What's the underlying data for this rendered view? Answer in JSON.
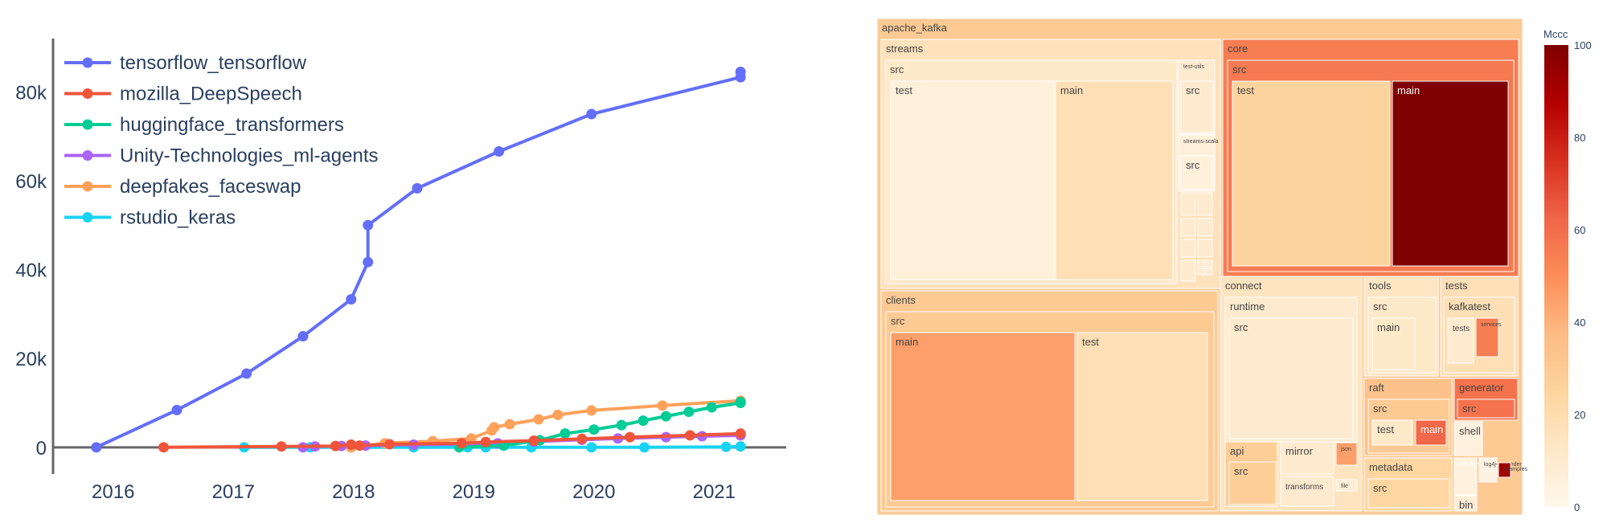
{
  "chart_data": [
    {
      "type": "line",
      "ylim": [
        -6000,
        92000
      ],
      "xlim": [
        2015.5,
        2021.6
      ],
      "yticks": [
        {
          "value": 0,
          "label": "0"
        },
        {
          "value": 20000,
          "label": "20k"
        },
        {
          "value": 40000,
          "label": "40k"
        },
        {
          "value": 60000,
          "label": "60k"
        },
        {
          "value": 80000,
          "label": "80k"
        }
      ],
      "xticks": [
        {
          "value": 2016,
          "label": "2016"
        },
        {
          "value": 2017,
          "label": "2017"
        },
        {
          "value": 2018,
          "label": "2018"
        },
        {
          "value": 2019,
          "label": "2019"
        },
        {
          "value": 2020,
          "label": "2020"
        },
        {
          "value": 2021,
          "label": "2021"
        }
      ],
      "legend_position": "top-left",
      "series": [
        {
          "name": "tensorflow_tensorflow",
          "color": "#636efa",
          "points": [
            [
              2015.86,
              0
            ],
            [
              2016.53,
              8400
            ],
            [
              2017.11,
              16600
            ],
            [
              2017.58,
              25000
            ],
            [
              2017.98,
              33300
            ],
            [
              2018.12,
              41700
            ],
            [
              2018.12,
              50000
            ],
            [
              2018.53,
              58300
            ],
            [
              2019.21,
              66600
            ],
            [
              2019.98,
              75000
            ],
            [
              2021.22,
              83300
            ],
            [
              2021.22,
              84500
            ]
          ]
        },
        {
          "name": "mozilla_DeepSpeech",
          "color": "#ef553b",
          "points": [
            [
              2016.42,
              0
            ],
            [
              2017.4,
              200
            ],
            [
              2017.85,
              300
            ],
            [
              2017.98,
              600
            ],
            [
              2018.05,
              400
            ],
            [
              2018.3,
              700
            ],
            [
              2018.9,
              900
            ],
            [
              2019.1,
              1200
            ],
            [
              2019.5,
              1500
            ],
            [
              2019.9,
              1900
            ],
            [
              2020.3,
              2300
            ],
            [
              2020.8,
              2700
            ],
            [
              2021.22,
              3100
            ]
          ]
        },
        {
          "name": "huggingface_transformers",
          "color": "#00cc96",
          "points": [
            [
              2018.88,
              0
            ],
            [
              2019.25,
              400
            ],
            [
              2019.55,
              1600
            ],
            [
              2019.76,
              3100
            ],
            [
              2020.0,
              4000
            ],
            [
              2020.23,
              5000
            ],
            [
              2020.41,
              6000
            ],
            [
              2020.6,
              7000
            ],
            [
              2020.79,
              8000
            ],
            [
              2020.98,
              9000
            ],
            [
              2021.22,
              10000
            ],
            [
              2021.22,
              10200
            ]
          ]
        },
        {
          "name": "Unity-Technologies_ml-agents",
          "color": "#ab63fa",
          "points": [
            [
              2017.58,
              0
            ],
            [
              2017.68,
              200
            ],
            [
              2017.9,
              300
            ],
            [
              2018.1,
              400
            ],
            [
              2018.5,
              600
            ],
            [
              2018.9,
              700
            ],
            [
              2019.2,
              900
            ],
            [
              2019.5,
              1300
            ],
            [
              2019.9,
              1700
            ],
            [
              2020.2,
              2000
            ],
            [
              2020.6,
              2300
            ],
            [
              2020.9,
              2500
            ],
            [
              2021.22,
              2700
            ],
            [
              2021.22,
              2900
            ]
          ]
        },
        {
          "name": "deepfakes_faceswap",
          "color": "#ffa15a",
          "points": [
            [
              2017.98,
              0
            ],
            [
              2018.26,
              900
            ],
            [
              2018.66,
              1400
            ],
            [
              2018.98,
              2000
            ],
            [
              2019.15,
              3800
            ],
            [
              2019.17,
              4500
            ],
            [
              2019.3,
              5200
            ],
            [
              2019.54,
              6300
            ],
            [
              2019.7,
              7300
            ],
            [
              2019.98,
              8300
            ],
            [
              2020.57,
              9400
            ],
            [
              2021.22,
              10500
            ]
          ]
        },
        {
          "name": "rstudio_keras",
          "color": "#19d3f3",
          "points": [
            [
              2017.09,
              0
            ],
            [
              2017.64,
              0
            ],
            [
              2017.98,
              0
            ],
            [
              2018.5,
              0
            ],
            [
              2018.95,
              0
            ],
            [
              2019.1,
              0
            ],
            [
              2019.48,
              0
            ],
            [
              2019.98,
              0
            ],
            [
              2020.42,
              0
            ],
            [
              2021.1,
              100
            ],
            [
              2021.22,
              200
            ]
          ]
        }
      ]
    },
    {
      "type": "treemap",
      "colorbar_title": "Mccc",
      "colorbar_ticks": [
        {
          "value": 0,
          "label": "0"
        },
        {
          "value": 20,
          "label": "20"
        },
        {
          "value": 40,
          "label": "40"
        },
        {
          "value": 60,
          "label": "60"
        },
        {
          "value": 80,
          "label": "80"
        },
        {
          "value": 100,
          "label": "100"
        }
      ],
      "colorscale": [
        "#fff7ec",
        "#fee8c8",
        "#fdd49e",
        "#fdbb84",
        "#fc8d59",
        "#ef6548",
        "#d7301f",
        "#b30000",
        "#7f0000"
      ],
      "root": "apache_kafka",
      "nodes": [
        {
          "label": "apache_kafka",
          "value": 30
        },
        {
          "label": "streams",
          "value": 16
        },
        {
          "label": "src",
          "value": 12
        },
        {
          "label": "test",
          "value": 6
        },
        {
          "label": "main",
          "value": 18
        },
        {
          "label": "test-utils",
          "value": 10
        },
        {
          "label": "src",
          "value": 10
        },
        {
          "label": "streams-scala",
          "value": 6
        },
        {
          "label": "src",
          "value": 6
        },
        {
          "label": "core",
          "value": 55
        },
        {
          "label": "src",
          "value": 56
        },
        {
          "label": "test",
          "value": 25
        },
        {
          "label": "main",
          "value": 100
        },
        {
          "label": "clients",
          "value": 30
        },
        {
          "label": "src",
          "value": 30
        },
        {
          "label": "main",
          "value": 45
        },
        {
          "label": "test",
          "value": 18
        },
        {
          "label": "connect",
          "value": 15
        },
        {
          "label": "runtime",
          "value": 10
        },
        {
          "label": "src",
          "value": 10
        },
        {
          "label": "api",
          "value": 28
        },
        {
          "label": "src",
          "value": 28
        },
        {
          "label": "mirror",
          "value": 10
        },
        {
          "label": "json",
          "value": 45
        },
        {
          "label": "transforms",
          "value": 10
        },
        {
          "label": "file",
          "value": 8
        },
        {
          "label": "tools",
          "value": 14
        },
        {
          "label": "src",
          "value": 12
        },
        {
          "label": "main",
          "value": 12
        },
        {
          "label": "tests",
          "value": 18
        },
        {
          "label": "kafkatest",
          "value": 18
        },
        {
          "label": "tests",
          "value": 10
        },
        {
          "label": "services",
          "value": 55
        },
        {
          "label": "raft",
          "value": 34
        },
        {
          "label": "src",
          "value": 30
        },
        {
          "label": "test",
          "value": 12
        },
        {
          "label": "main",
          "value": 62
        },
        {
          "label": "generator",
          "value": 58
        },
        {
          "label": "src",
          "value": 58
        },
        {
          "label": "shell",
          "value": 5
        },
        {
          "label": "metadata",
          "value": 24
        },
        {
          "label": "src",
          "value": 24
        },
        {
          "label": "jmh-benchmarks",
          "value": 5
        },
        {
          "label": "log4j-appender",
          "value": 3
        },
        {
          "label": "bin",
          "value": 8
        },
        {
          "label": "examples",
          "value": 92
        }
      ]
    }
  ]
}
